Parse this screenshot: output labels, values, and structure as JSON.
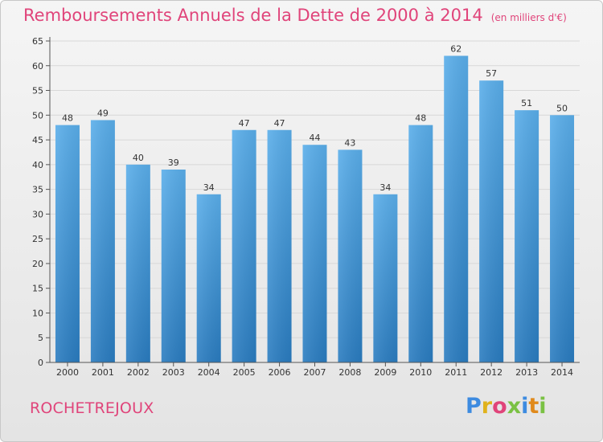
{
  "header": {
    "title": "Remboursements Annuels de la Dette de 2000 à 2014",
    "unit": "(en milliers d'€)"
  },
  "footer": {
    "commune": "ROCHETREJOUX",
    "logo": {
      "letters": [
        "P",
        "r",
        "o",
        "x",
        "i",
        "t",
        "i"
      ]
    }
  },
  "colors": {
    "title": "#e0447a",
    "bar_top": "#5aaeea",
    "bar_bottom": "#2a7cc0",
    "grid": "#d8d8d8",
    "axis": "#555555"
  },
  "chart_data": {
    "type": "bar",
    "categories": [
      "2000",
      "2001",
      "2002",
      "2003",
      "2004",
      "2005",
      "2006",
      "2007",
      "2008",
      "2009",
      "2010",
      "2011",
      "2012",
      "2013",
      "2014"
    ],
    "values": [
      48,
      49,
      40,
      39,
      34,
      47,
      47,
      44,
      43,
      34,
      48,
      62,
      57,
      51,
      50
    ],
    "yticks": [
      0,
      5,
      10,
      15,
      20,
      25,
      30,
      35,
      40,
      45,
      50,
      55,
      60,
      65
    ],
    "ylim": [
      0,
      65
    ],
    "grid": true,
    "legend": "none"
  }
}
